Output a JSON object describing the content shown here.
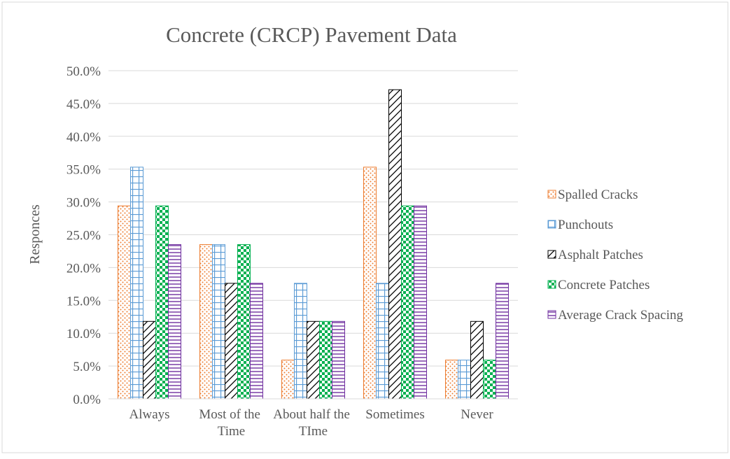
{
  "chart_data": {
    "type": "bar",
    "title": "Concrete (CRCP) Pavement Data",
    "ylabel": "Responces",
    "categories": [
      "Always",
      "Most of the Time",
      "About half the TIme",
      "Sometimes",
      "Never"
    ],
    "series": [
      {
        "name": "Spalled Cracks",
        "color": "#ed7d31",
        "values": [
          29.4,
          23.5,
          5.9,
          35.3,
          5.9
        ]
      },
      {
        "name": "Punchouts",
        "color": "#5b9bd5",
        "values": [
          35.3,
          23.5,
          17.6,
          17.6,
          5.9
        ]
      },
      {
        "name": "Asphalt Patches",
        "color": "#000000",
        "values": [
          11.8,
          17.6,
          11.8,
          47.1,
          11.8
        ]
      },
      {
        "name": "Concrete Patches",
        "color": "#00b050",
        "values": [
          29.4,
          23.5,
          11.8,
          29.4,
          5.9
        ]
      },
      {
        "name": "Average Crack Spacing",
        "color": "#7030a0",
        "values": [
          23.5,
          17.6,
          11.8,
          29.4,
          17.6
        ]
      }
    ],
    "ylim": [
      0,
      50
    ],
    "yticks": [
      {
        "value": 0,
        "label": "0.0%"
      },
      {
        "value": 5,
        "label": "5.0%"
      },
      {
        "value": 10,
        "label": "10.0%"
      },
      {
        "value": 15,
        "label": "15.0%"
      },
      {
        "value": 20,
        "label": "20.0%"
      },
      {
        "value": 25,
        "label": "25.0%"
      },
      {
        "value": 30,
        "label": "30.0%"
      },
      {
        "value": 35,
        "label": "35.0%"
      },
      {
        "value": 40,
        "label": "40.0%"
      },
      {
        "value": 45,
        "label": "45.0%"
      },
      {
        "value": 50,
        "label": "50.0%"
      }
    ],
    "grid": true,
    "legend": "right"
  }
}
